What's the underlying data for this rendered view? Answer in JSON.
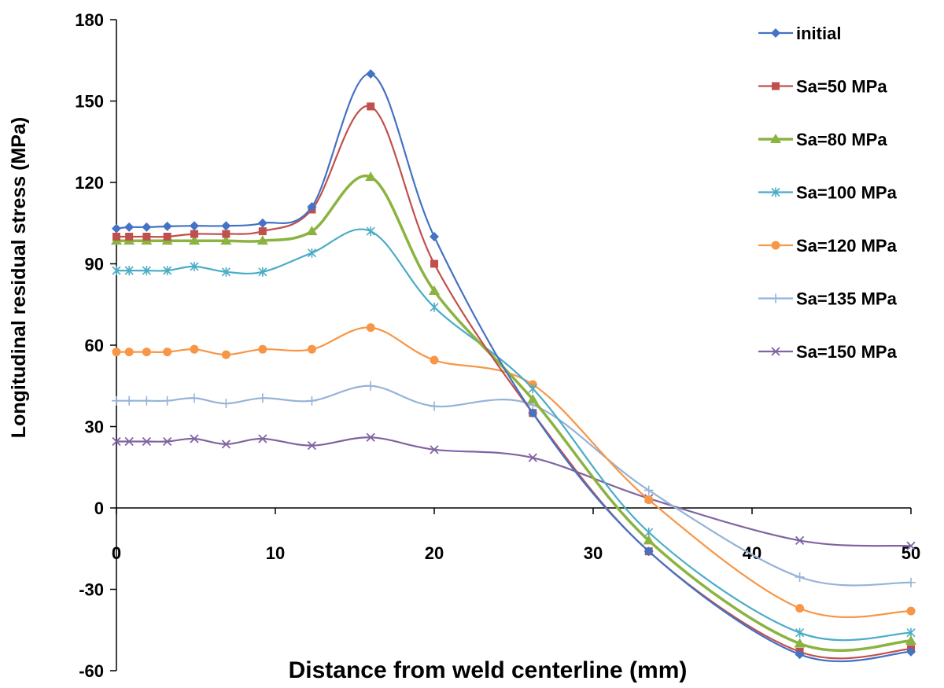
{
  "chart_data": {
    "type": "line",
    "title": "",
    "xlabel": "Distance from weld centerline (mm)",
    "ylabel": "Longitudinal  residual stress (MPa)",
    "xlim": [
      0,
      50
    ],
    "ylim": [
      -60,
      180
    ],
    "xticks": [
      "0",
      "10",
      "20",
      "30",
      "40",
      "50"
    ],
    "yticks": [
      "-60",
      "-30",
      "0",
      "30",
      "60",
      "90",
      "120",
      "150",
      "180"
    ],
    "grid": false,
    "legend_position": "right",
    "series": [
      {
        "name": "initial",
        "color": "#4472C4",
        "marker": "diamond",
        "points": [
          [
            0,
            103
          ],
          [
            0.8,
            103.5
          ],
          [
            1.9,
            103.5
          ],
          [
            3.2,
            103.8
          ],
          [
            4.9,
            104
          ],
          [
            6.9,
            104
          ],
          [
            9.2,
            105
          ],
          [
            12.3,
            111
          ],
          [
            16,
            160
          ],
          [
            20,
            100
          ],
          [
            26.2,
            35
          ],
          [
            33.5,
            -16
          ],
          [
            43,
            -54
          ],
          [
            50,
            -53
          ]
        ]
      },
      {
        "name": "Sa=50 MPa",
        "color": "#C0504D",
        "marker": "square",
        "points": [
          [
            0,
            100
          ],
          [
            0.8,
            100
          ],
          [
            1.9,
            100
          ],
          [
            3.2,
            100
          ],
          [
            4.9,
            101
          ],
          [
            6.9,
            101
          ],
          [
            9.2,
            102
          ],
          [
            12.3,
            110
          ],
          [
            16,
            148
          ],
          [
            20,
            90
          ],
          [
            26.2,
            35
          ],
          [
            33.5,
            -16
          ],
          [
            43,
            -53
          ],
          [
            50,
            -52
          ]
        ]
      },
      {
        "name": "Sa=80 MPa",
        "color": "#8BB340",
        "marker": "triangle",
        "points": [
          [
            0,
            98.5
          ],
          [
            0.8,
            98.5
          ],
          [
            1.9,
            98.5
          ],
          [
            3.2,
            98.5
          ],
          [
            4.9,
            98.5
          ],
          [
            6.9,
            98.5
          ],
          [
            9.2,
            98.5
          ],
          [
            12.3,
            102
          ],
          [
            16,
            122
          ],
          [
            20,
            80
          ],
          [
            26.2,
            40
          ],
          [
            33.5,
            -12
          ],
          [
            43,
            -50
          ],
          [
            50,
            -49
          ]
        ]
      },
      {
        "name": "Sa=100 MPa",
        "color": "#4BACC6",
        "marker": "star",
        "points": [
          [
            0,
            87.5
          ],
          [
            0.8,
            87.5
          ],
          [
            1.9,
            87.5
          ],
          [
            3.2,
            87.5
          ],
          [
            4.9,
            89
          ],
          [
            6.9,
            87
          ],
          [
            9.2,
            87
          ],
          [
            12.3,
            94
          ],
          [
            16,
            102
          ],
          [
            20,
            74
          ],
          [
            26.2,
            44
          ],
          [
            33.5,
            -9
          ],
          [
            43,
            -46
          ],
          [
            50,
            -46
          ]
        ]
      },
      {
        "name": "Sa=120 MPa",
        "color": "#F79646",
        "marker": "circle",
        "points": [
          [
            0,
            57.5
          ],
          [
            0.8,
            57.5
          ],
          [
            1.9,
            57.5
          ],
          [
            3.2,
            57.5
          ],
          [
            4.9,
            58.5
          ],
          [
            6.9,
            56.5
          ],
          [
            9.2,
            58.5
          ],
          [
            12.3,
            58.5
          ],
          [
            16,
            66.5
          ],
          [
            20,
            54.5
          ],
          [
            26.2,
            45.5
          ],
          [
            33.5,
            3
          ],
          [
            43,
            -37
          ],
          [
            50,
            -38
          ]
        ]
      },
      {
        "name": "Sa=135 MPa",
        "color": "#95B3D7",
        "marker": "plus",
        "points": [
          [
            0,
            39.5
          ],
          [
            0.8,
            39.5
          ],
          [
            1.9,
            39.5
          ],
          [
            3.2,
            39.5
          ],
          [
            4.9,
            40.5
          ],
          [
            6.9,
            38.5
          ],
          [
            9.2,
            40.5
          ],
          [
            12.3,
            39.5
          ],
          [
            16,
            45
          ],
          [
            20,
            37.5
          ],
          [
            26.2,
            38
          ],
          [
            33.5,
            6.5
          ],
          [
            43,
            -25.5
          ],
          [
            50,
            -27.5
          ]
        ]
      },
      {
        "name": "Sa=150 MPa",
        "color": "#8064A2",
        "marker": "x",
        "points": [
          [
            0,
            24.5
          ],
          [
            0.8,
            24.5
          ],
          [
            1.9,
            24.5
          ],
          [
            3.2,
            24.5
          ],
          [
            4.9,
            25.5
          ],
          [
            6.9,
            23.5
          ],
          [
            9.2,
            25.5
          ],
          [
            12.3,
            23
          ],
          [
            16,
            26
          ],
          [
            20,
            21.5
          ],
          [
            26.2,
            18.5
          ],
          [
            33.5,
            3.5
          ],
          [
            43,
            -12
          ],
          [
            50,
            -14
          ]
        ]
      }
    ]
  }
}
